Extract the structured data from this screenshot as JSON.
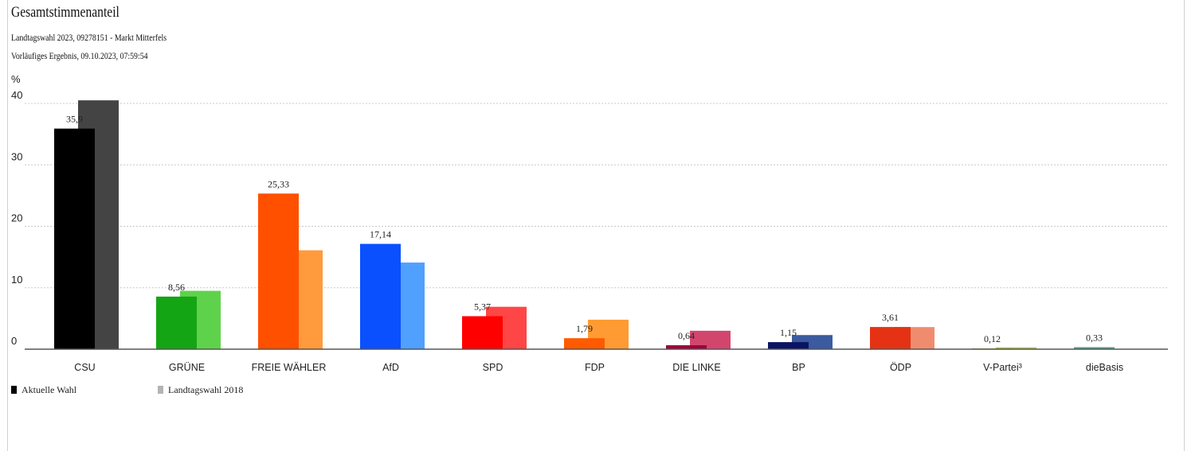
{
  "chart_data": {
    "type": "bar",
    "title": "Gesamtstimmenanteil",
    "subtitle": [
      "Landtagswahl 2023, 09278151 - Markt Mitterfels",
      "Vorläufiges Ergebnis, 09.10.2023, 07:59:54"
    ],
    "ylabel": "%",
    "xlabel": "",
    "ylim": [
      0,
      40
    ],
    "yticks": [
      "0",
      "10",
      "20",
      "30",
      "40"
    ],
    "grid": true,
    "legend_position": "bottom-left",
    "categories": [
      "CSU",
      "GRÜNE",
      "FREIE WÄHLER",
      "AfD",
      "SPD",
      "FDP",
      "DIE LINKE",
      "BP",
      "ÖDP",
      "V-Partei³",
      "dieBasis"
    ],
    "series": [
      {
        "name": "Aktuelle Wahl",
        "values": [
          35.9,
          8.56,
          25.33,
          17.14,
          5.37,
          1.79,
          0.64,
          1.15,
          3.61,
          0.12,
          0.33
        ],
        "labels": [
          "35,9",
          "8,56",
          "25,33",
          "17,14",
          "5,37",
          "1,79",
          "0,64",
          "1,15",
          "3,61",
          "0,12",
          "0,33"
        ],
        "colors": [
          "#000000",
          "#14a514",
          "#ff5000",
          "#0a50ff",
          "#ff0000",
          "#ff5a00",
          "#a0003c",
          "#0a1464",
          "#e63214",
          "#8ca028",
          "#5aa08c"
        ]
      },
      {
        "name": "Landtagswahl 2018",
        "values": [
          40.5,
          9.5,
          16.1,
          14.1,
          6.9,
          4.8,
          3.0,
          2.3,
          3.6,
          0.3,
          null
        ],
        "colors": [
          "#444444",
          "#5fd24b",
          "#ff9b3c",
          "#50a0ff",
          "#ff4646",
          "#ff9b32",
          "#d2466e",
          "#3c5aa0",
          "#f08c6e",
          "#b4c350",
          "#8cc8b4"
        ]
      }
    ],
    "legend_colors": [
      "#000000",
      "#b4b4b4"
    ]
  }
}
